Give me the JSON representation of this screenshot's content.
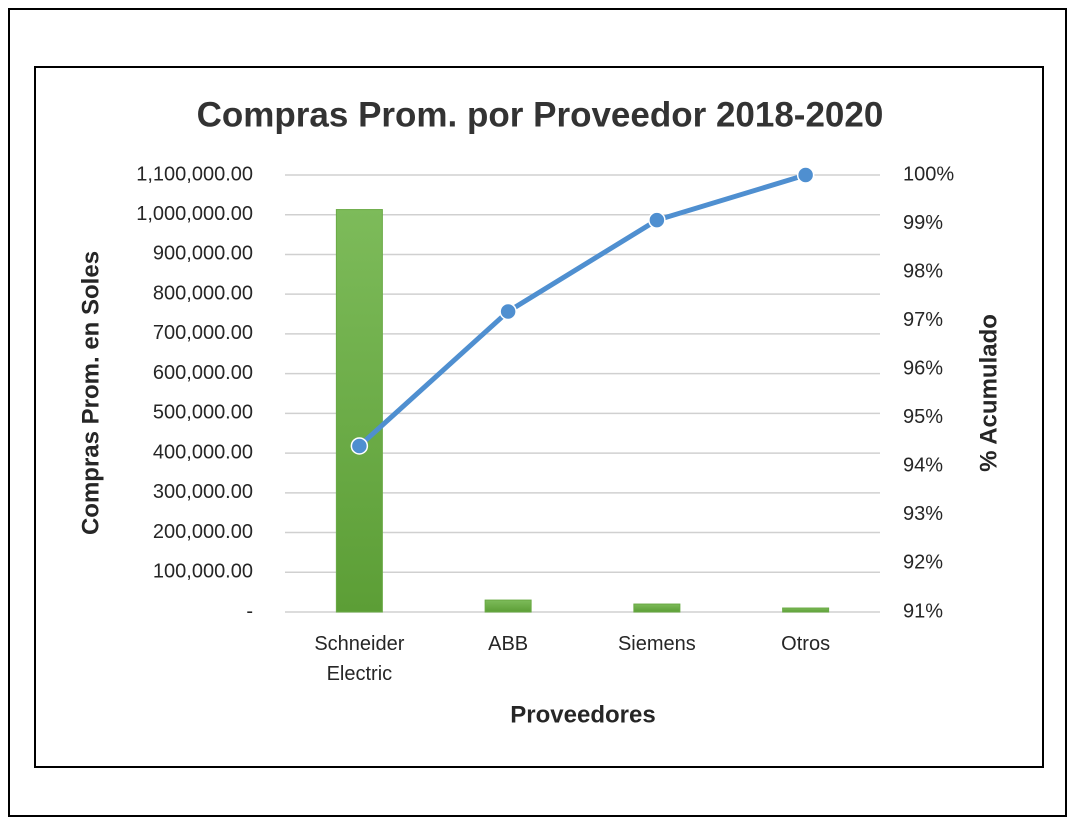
{
  "chart_data": {
    "type": "bar",
    "title": "Compras Prom. por Proveedor 2018-2020",
    "x_label": "Proveedores",
    "y_label": "Compras Prom. en Soles",
    "y2_label": "% Acumulado",
    "categories": [
      "Schneider Electric",
      "ABB",
      "Siemens",
      "Otros"
    ],
    "series": [
      {
        "type": "bar",
        "color": "#6aaa45",
        "values": [
          1013000,
          30000,
          20000,
          10000
        ]
      },
      {
        "type": "line",
        "axis": "y2",
        "color": "#4f8fd0",
        "values": [
          94.42,
          97.19,
          99.07,
          100
        ]
      }
    ],
    "ylim": [
      0,
      1100000
    ],
    "yticks": [
      {
        "value": 0,
        "label": "-"
      },
      {
        "value": 100000,
        "label": "100,000.00"
      },
      {
        "value": 200000,
        "label": "200,000.00"
      },
      {
        "value": 300000,
        "label": "300,000.00"
      },
      {
        "value": 400000,
        "label": "400,000.00"
      },
      {
        "value": 500000,
        "label": "500,000.00"
      },
      {
        "value": 600000,
        "label": "600,000.00"
      },
      {
        "value": 700000,
        "label": "700,000.00"
      },
      {
        "value": 800000,
        "label": "800,000.00"
      },
      {
        "value": 900000,
        "label": "900,000.00"
      },
      {
        "value": 1000000,
        "label": "1,000,000.00"
      },
      {
        "value": 1100000,
        "label": "1,100,000.00"
      }
    ],
    "y2lim": [
      91,
      100
    ],
    "y2ticks": [
      {
        "value": 91,
        "label": "91%"
      },
      {
        "value": 92,
        "label": "92%"
      },
      {
        "value": 93,
        "label": "93%"
      },
      {
        "value": 94,
        "label": "94%"
      },
      {
        "value": 95,
        "label": "95%"
      },
      {
        "value": 96,
        "label": "96%"
      },
      {
        "value": 97,
        "label": "97%"
      },
      {
        "value": 98,
        "label": "98%"
      },
      {
        "value": 99,
        "label": "99%"
      },
      {
        "value": 100,
        "label": "100%"
      }
    ],
    "grid": true
  }
}
